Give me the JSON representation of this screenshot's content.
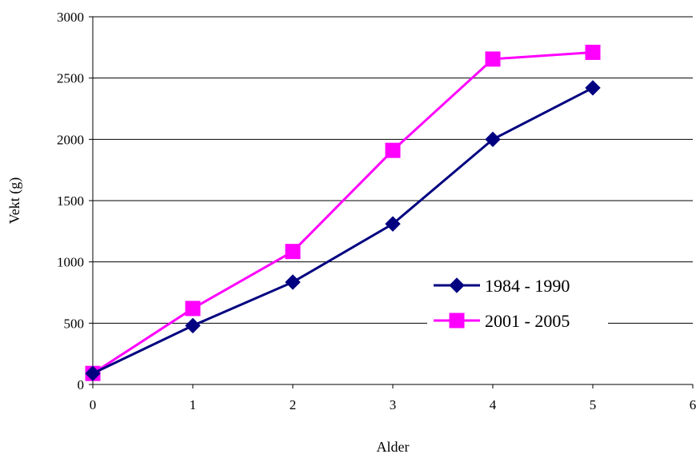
{
  "chart_data": {
    "type": "line",
    "title": "",
    "xlabel": "Alder",
    "ylabel": "Vekt (g)",
    "xlim": [
      0,
      6
    ],
    "ylim": [
      0,
      3000
    ],
    "x_ticks": [
      "0",
      "1",
      "2",
      "3",
      "4",
      "5",
      "6"
    ],
    "y_ticks": [
      "0",
      "500",
      "1000",
      "1500",
      "2000",
      "2500",
      "3000"
    ],
    "grid": "horizontal",
    "legend_position": "right",
    "series": [
      {
        "name": "1984 - 1990",
        "marker": "diamond",
        "color": "#000080",
        "x": [
          0,
          1,
          2,
          3,
          4,
          5
        ],
        "y": [
          90,
          480,
          835,
          1310,
          2000,
          2420
        ]
      },
      {
        "name": "2001 - 2005",
        "marker": "square",
        "color": "#ff00ff",
        "x": [
          0,
          1,
          2,
          3,
          4,
          5
        ],
        "y": [
          90,
          620,
          1085,
          1910,
          2655,
          2710
        ]
      }
    ]
  }
}
